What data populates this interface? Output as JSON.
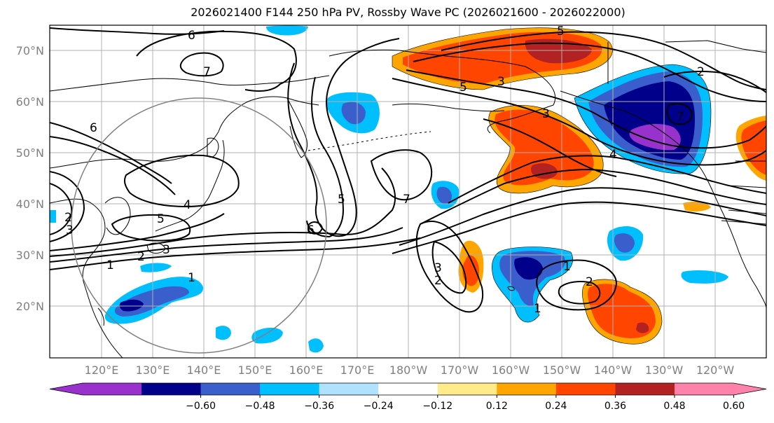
{
  "title": "2026021400 F144 250 hPa PV, Rossby Wave PC (2026021600 - 2026022000)",
  "lat_labels": [
    "70°N",
    "60°N",
    "50°N",
    "40°N",
    "30°N",
    "20°N"
  ],
  "lon_labels": [
    "120°E",
    "130°E",
    "140°E",
    "150°E",
    "160°E",
    "170°E",
    "180°W",
    "170°W",
    "160°W",
    "150°W",
    "140°W",
    "130°W",
    "120°W"
  ],
  "colorbar": {
    "ticks": [
      "−0.60",
      "−0.48",
      "−0.36",
      "−0.24",
      "−0.12",
      "0.12",
      "0.24",
      "0.36",
      "0.48",
      "0.60"
    ],
    "colors": [
      "#9932cc",
      "#00008b",
      "#3a5fcd",
      "#00bfff",
      "#b0e2ff",
      "#ffffff",
      "#ffeb8a",
      "#ffa500",
      "#ff4500",
      "#b22222",
      "#ff82ab"
    ]
  },
  "contour_labels": [
    "6",
    "7",
    "6",
    "2",
    "3",
    "4",
    "5",
    "1",
    "2",
    "3",
    "5",
    "6",
    "7",
    "3",
    "3",
    "2",
    "1",
    "5",
    "5",
    "7",
    "4",
    "1",
    "3",
    "2",
    "1",
    "2"
  ]
}
